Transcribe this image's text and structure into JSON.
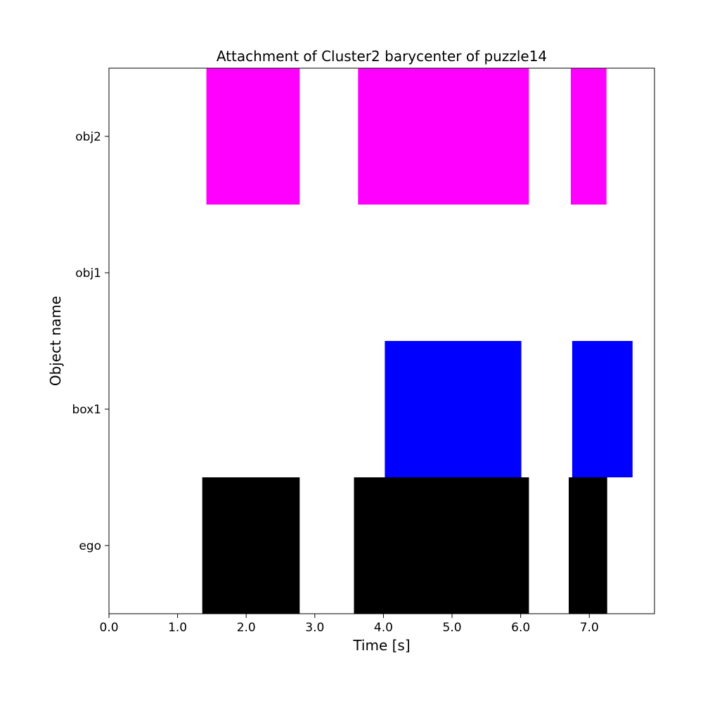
{
  "chart_data": {
    "type": "timeline",
    "title": "Attachment of Cluster2 barycenter of puzzle14",
    "xlabel": "Time [s]",
    "ylabel": "Object name",
    "xlim": [
      0.0,
      7.95
    ],
    "xticks": [
      "0.0",
      "1.0",
      "2.0",
      "3.0",
      "4.0",
      "5.0",
      "6.0",
      "7.0"
    ],
    "categories": [
      "ego",
      "box1",
      "obj1",
      "obj2"
    ],
    "grid": false,
    "series": [
      {
        "category": "obj2",
        "color": "#ff00ff",
        "intervals": [
          [
            1.42,
            2.78
          ],
          [
            3.63,
            6.12
          ],
          [
            6.73,
            7.25
          ]
        ]
      },
      {
        "category": "obj1",
        "color": "#ff0000",
        "intervals": []
      },
      {
        "category": "box1",
        "color": "#0000ff",
        "intervals": [
          [
            4.02,
            6.01
          ],
          [
            6.75,
            7.63
          ]
        ]
      },
      {
        "category": "ego",
        "color": "#000000",
        "intervals": [
          [
            1.36,
            2.78
          ],
          [
            3.57,
            6.12
          ],
          [
            6.7,
            7.26
          ]
        ]
      }
    ]
  }
}
